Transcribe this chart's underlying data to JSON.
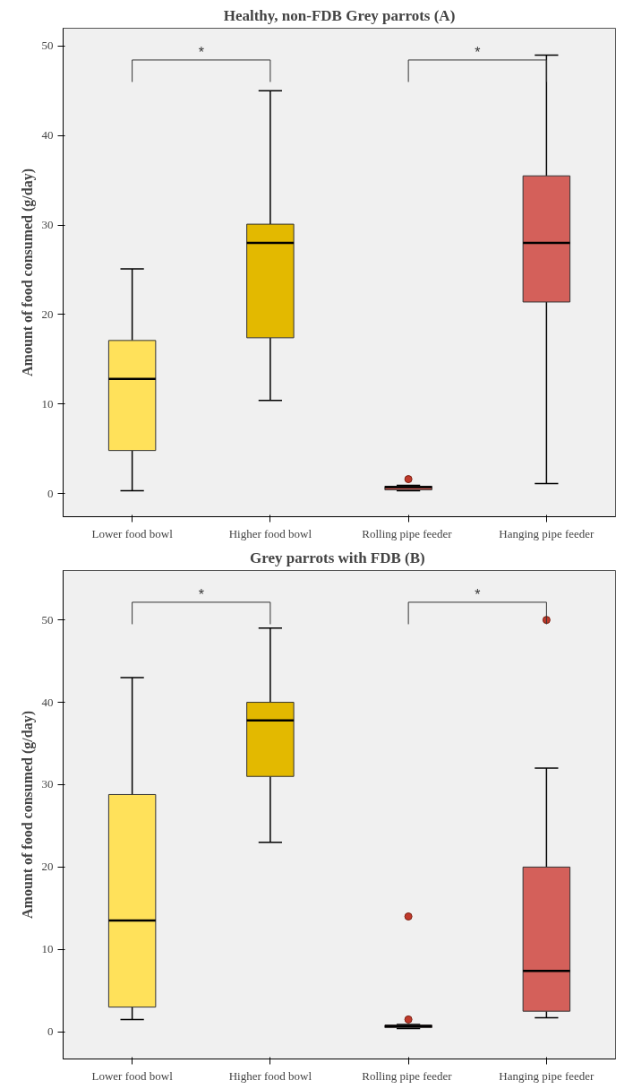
{
  "chart_data": [
    {
      "type": "box",
      "title": "Healthy, non-FDB Grey parrots (A)",
      "ylabel": "Amount of food consumed (g/day)",
      "categories": [
        "Lower food bowl",
        "Higher food bowl",
        "Rolling pipe  feeder",
        "Hanging pipe feeder"
      ],
      "colors": [
        "#ffe15a",
        "#e3b900",
        "#d4605a",
        "#d4605a"
      ],
      "boxes": [
        {
          "low": 0.3,
          "q1": 4.8,
          "median": 12.8,
          "q3": 17.1,
          "high": 25.1
        },
        {
          "low": 10.4,
          "q1": 17.4,
          "median": 28,
          "q3": 30.1,
          "high": 45
        },
        {
          "low": 0.3,
          "q1": 0.4,
          "median": 0.7,
          "q3": 0.8,
          "high": 0.9,
          "outliers": [
            1.6
          ]
        },
        {
          "low": 1.1,
          "q1": 21.4,
          "median": 28,
          "q3": 35.5,
          "high": 49
        }
      ],
      "ylim": [
        -2.6,
        52
      ],
      "yticks": [
        0,
        10,
        20,
        30,
        40,
        50
      ],
      "annotations": [
        "*",
        "*"
      ]
    },
    {
      "type": "box",
      "title": "Grey parrots with FDB  (B)",
      "ylabel": "Amount of food consumed (g/day)",
      "categories": [
        "Lower food bowl",
        "Higher food bowl",
        "Rolling pipe  feeder",
        "Hanging pipe feeder"
      ],
      "colors": [
        "#ffe15a",
        "#e3b900",
        "#d4605a",
        "#d4605a"
      ],
      "boxes": [
        {
          "low": 1.5,
          "q1": 3,
          "median": 13.5,
          "q3": 28.8,
          "high": 43
        },
        {
          "low": 23,
          "q1": 31,
          "median": 37.8,
          "q3": 40,
          "high": 49
        },
        {
          "low": 0.4,
          "q1": 0.5,
          "median": 0.7,
          "q3": 0.8,
          "high": 0.9,
          "outliers": [
            1.5,
            14
          ]
        },
        {
          "low": 1.7,
          "q1": 2.5,
          "median": 7.4,
          "q3": 20,
          "high": 32,
          "outliers": [
            50
          ]
        }
      ],
      "ylim": [
        -3.3,
        56
      ],
      "yticks": [
        0,
        10,
        20,
        30,
        40,
        50
      ],
      "annotations": [
        "*",
        "*"
      ]
    }
  ]
}
